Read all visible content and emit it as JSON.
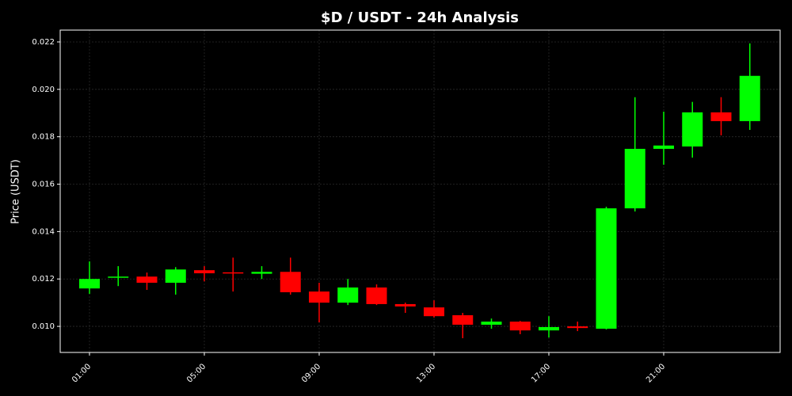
{
  "chart_data": {
    "type": "candlestick",
    "title": "$D / USDT - 24h Analysis",
    "y_label": "Price (USDT)",
    "categories": [
      "01:00",
      null,
      null,
      null,
      "05:00",
      null,
      null,
      null,
      "09:00",
      null,
      null,
      null,
      "13:00",
      null,
      null,
      null,
      "17:00",
      null,
      null,
      null,
      "21:00",
      null,
      null,
      null
    ],
    "open": [
      0.0116,
      0.01205,
      0.0121,
      0.01184,
      0.01237,
      0.01228,
      0.01222,
      0.0123,
      0.01147,
      0.011,
      0.01164,
      0.01094,
      0.0108,
      0.01047,
      0.01007,
      0.0102,
      0.00983,
      0.01,
      0.0099,
      0.01498,
      0.01749,
      0.01759,
      0.01903,
      0.01866
    ],
    "high": [
      0.01274,
      0.01254,
      0.01227,
      0.0125,
      0.01254,
      0.0129,
      0.01254,
      0.0129,
      0.01184,
      0.012,
      0.01177,
      0.011,
      0.0111,
      0.01057,
      0.01033,
      0.01023,
      0.01043,
      0.0102,
      0.01505,
      0.01967,
      0.01906,
      0.01947,
      0.01967,
      0.02194
    ],
    "low": [
      0.01137,
      0.0117,
      0.01154,
      0.01134,
      0.0119,
      0.01147,
      0.012,
      0.01134,
      0.01017,
      0.0109,
      0.0109,
      0.01057,
      0.01037,
      0.0095,
      0.0099,
      0.00967,
      0.00953,
      0.0098,
      0.00987,
      0.01485,
      0.01682,
      0.01712,
      0.01806,
      0.01829
    ],
    "close": [
      0.012,
      0.0121,
      0.01184,
      0.0124,
      0.01224,
      0.01224,
      0.0123,
      0.01144,
      0.011,
      0.01164,
      0.01094,
      0.01084,
      0.01043,
      0.01007,
      0.0102,
      0.00983,
      0.00997,
      0.00993,
      0.01498,
      0.01749,
      0.01763,
      0.01903,
      0.01866,
      0.02057
    ],
    "up_color": "#00ff00",
    "down_color": "#ff0000",
    "ylim": [
      0.0089,
      0.0225
    ],
    "yticks": [
      {
        "value": 0.01,
        "label": "0.010"
      },
      {
        "value": 0.012,
        "label": "0.012"
      },
      {
        "value": 0.014,
        "label": "0.014"
      },
      {
        "value": 0.016,
        "label": "0.016"
      },
      {
        "value": 0.018,
        "label": "0.018"
      },
      {
        "value": 0.02,
        "label": "0.020"
      },
      {
        "value": 0.022,
        "label": "0.022"
      }
    ],
    "grid": true
  }
}
